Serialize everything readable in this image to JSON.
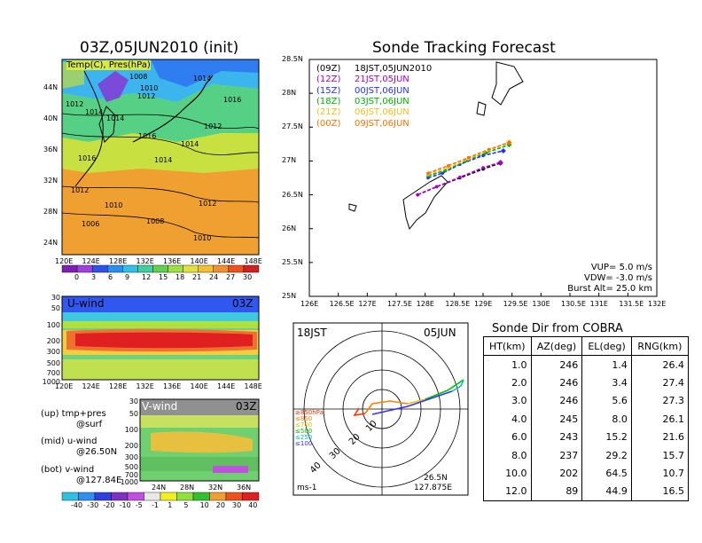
{
  "colors": {
    "track_09z": "#000000",
    "track_12z": "#aa00cc",
    "track_15z": "#2030ff",
    "track_18z": "#00b000",
    "track_21z": "#f0c020",
    "track_00z": "#ff7000"
  },
  "map_panel": {
    "title": "03Z,05JUN2010 (init)",
    "subtitle": "Temp(C), Pres(hPa)",
    "lat_ticks": [
      "44N",
      "40N",
      "36N",
      "32N",
      "28N",
      "24N"
    ],
    "lon_ticks": [
      "120E",
      "124E",
      "128E",
      "132E",
      "136E",
      "140E",
      "144E",
      "148E"
    ],
    "isobar_labels": [
      "1008",
      "1010",
      "1012",
      "1014",
      "1016",
      "1012",
      "1014",
      "1014",
      "1016",
      "1014",
      "1016",
      "1012",
      "1014",
      "1012",
      "1010",
      "1006",
      "1008",
      "1012",
      "1010"
    ],
    "colorbar_ticks": [
      "0",
      "3",
      "6",
      "9",
      "12",
      "15",
      "18",
      "21",
      "24",
      "27",
      "30"
    ]
  },
  "uwind_panel": {
    "title": "U-wind",
    "time": "03Z",
    "p_ticks": [
      "30",
      "50",
      "100",
      "200",
      "300",
      "500",
      "700",
      "1000"
    ],
    "lon_ticks": [
      "120E",
      "124E",
      "128E",
      "132E",
      "136E",
      "140E",
      "144E",
      "148E"
    ]
  },
  "vwind_panel": {
    "title": "V-wind",
    "time": "03Z",
    "p_ticks": [
      "30",
      "50",
      "100",
      "200",
      "300",
      "500",
      "700",
      "1000"
    ],
    "lat_ticks": [
      "24N",
      "28N",
      "32N",
      "36N"
    ]
  },
  "wind_colorbar_ticks": [
    "-40",
    "-30",
    "-20",
    "-10",
    "-5",
    "-1",
    "1",
    "5",
    "10",
    "20",
    "30",
    "40"
  ],
  "notes": {
    "up1": "(up) tmp+pres",
    "up2": "@surf",
    "mid1": "(mid) u-wind",
    "mid2": "@26.50N",
    "bot1": "(bot) v-wind",
    "bot2": "@127.84E"
  },
  "track_panel": {
    "title": "Sonde Tracking Forecast",
    "legend": [
      {
        "code": "(09Z)",
        "label": "18JST,05JUN2010",
        "color": "#000000"
      },
      {
        "code": "(12Z)",
        "label": "21JST,05JUN",
        "color": "#aa00cc"
      },
      {
        "code": "(15Z)",
        "label": "00JST,06JUN",
        "color": "#2030ff"
      },
      {
        "code": "(18Z)",
        "label": "03JST,06JUN",
        "color": "#00b000"
      },
      {
        "code": "(21Z)",
        "label": "06JST,06JUN",
        "color": "#f0c020"
      },
      {
        "code": "(00Z)",
        "label": "09JST,06JUN",
        "color": "#ff7000"
      }
    ],
    "params": [
      "VUP= 5.0 m/s",
      "VDW= -3.0 m/s",
      "Burst Alt= 25.0 km"
    ]
  },
  "hodo_panel": {
    "time": "18JST",
    "date": "05JUN",
    "loc1": "26.5N",
    "loc2": "127.875E",
    "unit": "ms-1",
    "ring_labels": [
      "10",
      "20",
      "30",
      "40"
    ],
    "levels": [
      {
        "label": "≥850hPa",
        "color": "#ff3000"
      },
      {
        "label": "≤850",
        "color": "#ff8000"
      },
      {
        "label": "≤700",
        "color": "#e8c000"
      },
      {
        "label": "≤500",
        "color": "#00c000"
      },
      {
        "label": "≤250",
        "color": "#00c0c0"
      },
      {
        "label": "≤100",
        "color": "#3030ff"
      }
    ]
  },
  "sonde_table": {
    "title": "Sonde Dir from COBRA",
    "headers": [
      "HT(km)",
      "AZ(deg)",
      "EL(deg)",
      "RNG(km)"
    ],
    "rows": [
      [
        "1.0",
        "246",
        "1.4",
        "26.4"
      ],
      [
        "2.0",
        "246",
        "3.4",
        "27.4"
      ],
      [
        "3.0",
        "246",
        "5.6",
        "27.3"
      ],
      [
        "4.0",
        "245",
        "8.0",
        "26.1"
      ],
      [
        "6.0",
        "243",
        "15.2",
        "21.6"
      ],
      [
        "8.0",
        "237",
        "29.2",
        "15.7"
      ],
      [
        "10.0",
        "202",
        "64.5",
        "10.7"
      ],
      [
        "12.0",
        "89",
        "44.9",
        "16.5"
      ]
    ]
  },
  "chart_data": {
    "type": "line",
    "title": "Sonde Tracking Forecast",
    "xlabel": "",
    "ylabel": "",
    "x_ticks": [
      "126E",
      "126.5E",
      "127E",
      "127.5E",
      "128E",
      "128.5E",
      "129E",
      "129.5E",
      "130E",
      "130.5E",
      "131E",
      "131.5E",
      "132E"
    ],
    "y_ticks": [
      "25N",
      "25.5N",
      "26N",
      "26.5N",
      "27N",
      "27.5N",
      "28N",
      "28.5N"
    ],
    "xlim": [
      126,
      132
    ],
    "ylim": [
      25,
      28.5
    ],
    "series": [
      {
        "name": "(09Z)",
        "color": "#000000",
        "x": [
          127.87,
          128.2,
          128.6,
          129.0,
          129.3
        ],
        "y": [
          26.5,
          26.62,
          26.75,
          26.88,
          26.97
        ]
      },
      {
        "name": "(12Z)",
        "color": "#aa00cc",
        "x": [
          127.87,
          128.2,
          128.6,
          129.0,
          129.3
        ],
        "y": [
          26.5,
          26.62,
          26.76,
          26.9,
          26.98
        ]
      },
      {
        "name": "(15Z)",
        "color": "#2030ff",
        "x": [
          128.05,
          128.3,
          128.6,
          129.0,
          129.35
        ],
        "y": [
          26.75,
          26.82,
          26.95,
          27.08,
          27.15
        ]
      },
      {
        "name": "(18Z)",
        "color": "#00b000",
        "x": [
          128.05,
          128.35,
          128.7,
          129.05,
          129.45
        ],
        "y": [
          26.78,
          26.86,
          27.0,
          27.12,
          27.24
        ]
      },
      {
        "name": "(21Z)",
        "color": "#f0c020",
        "x": [
          128.05,
          128.4,
          128.75,
          129.1,
          129.45
        ],
        "y": [
          26.8,
          26.9,
          27.03,
          27.16,
          27.28
        ]
      },
      {
        "name": "(00Z)",
        "color": "#ff7000",
        "x": [
          128.05,
          128.4,
          128.75,
          129.1,
          129.45
        ],
        "y": [
          26.82,
          26.93,
          27.05,
          27.17,
          27.27
        ]
      }
    ]
  }
}
